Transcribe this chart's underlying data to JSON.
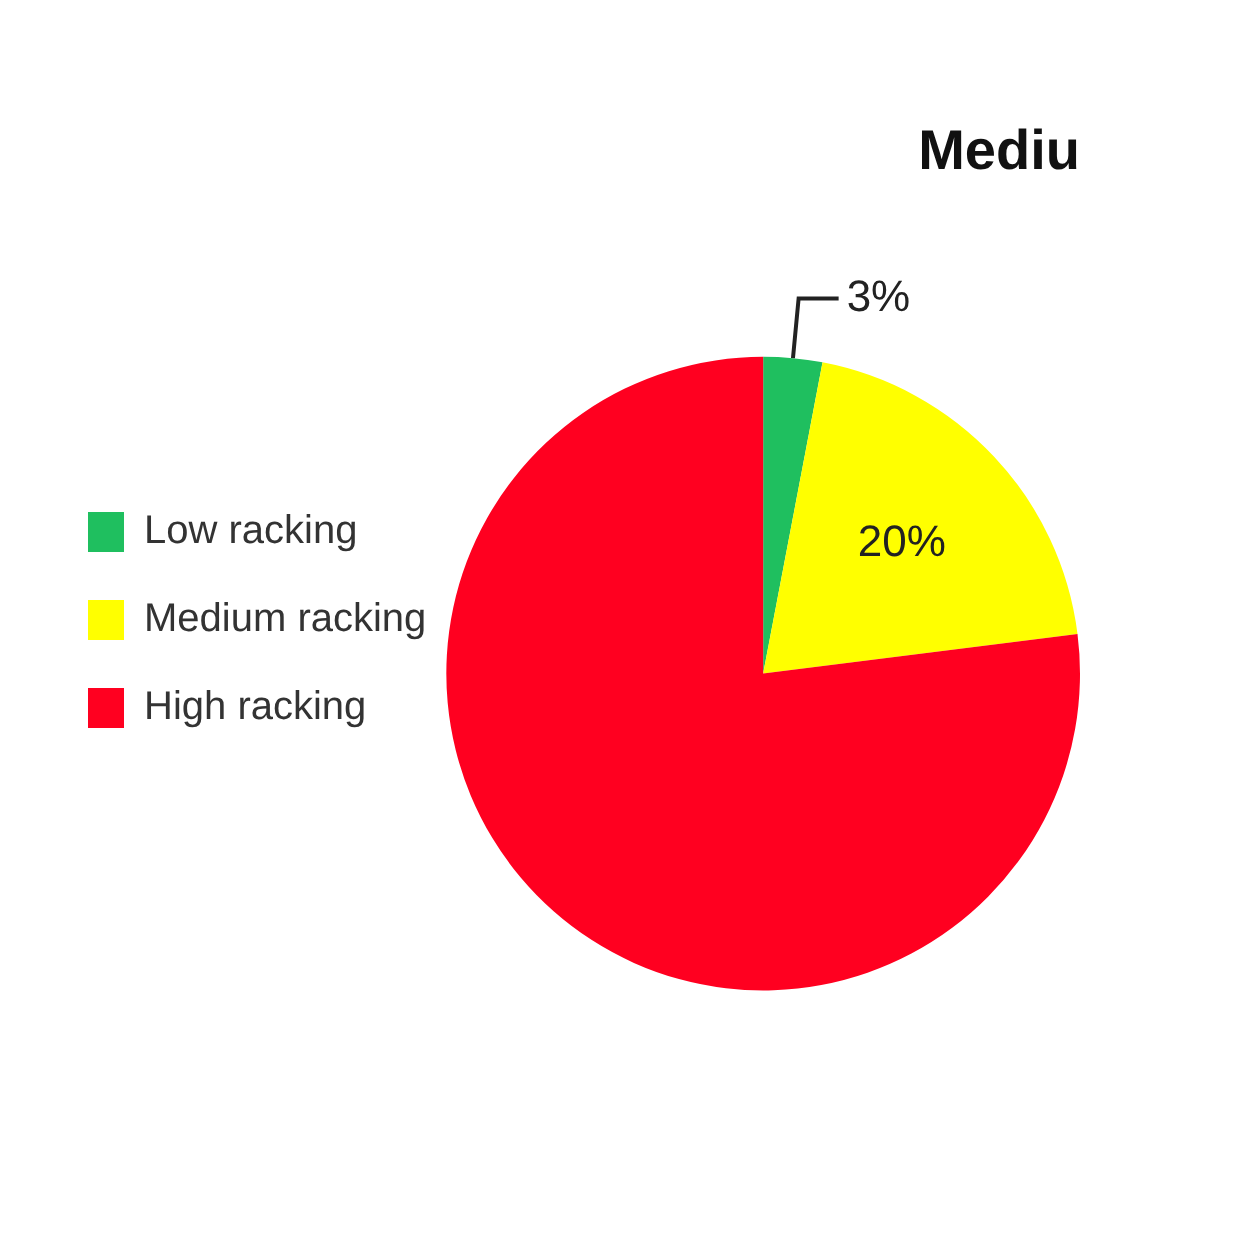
{
  "chart_data": {
    "type": "pie",
    "title": "Mediu",
    "categories": [
      "Low racking",
      "Medium racking",
      "High racking"
    ],
    "values": [
      3,
      20,
      77
    ],
    "colors": [
      "#1fbf5f",
      "#ffff00",
      "#ff0020"
    ],
    "value_labels": [
      "3%",
      "20%",
      null
    ],
    "legend": "left"
  }
}
